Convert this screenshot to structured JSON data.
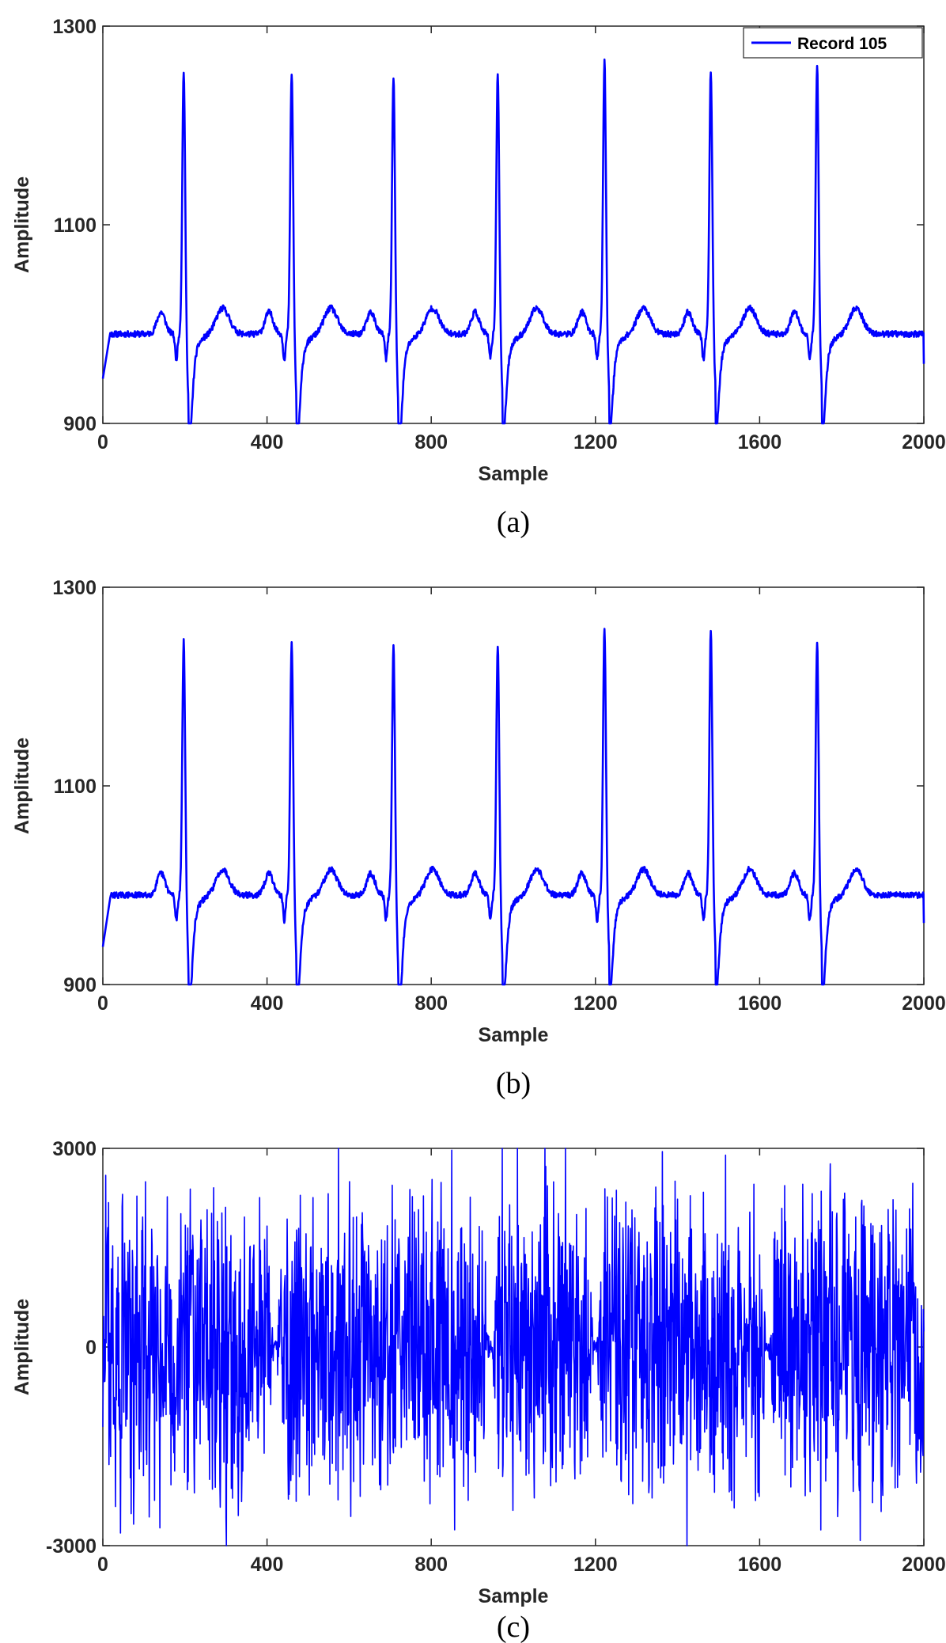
{
  "colors": {
    "line": "#0000ff",
    "axis": "#262626",
    "background": "#ffffff"
  },
  "chart_data": [
    {
      "type": "line",
      "caption": "(a)",
      "xlabel": "Sample",
      "ylabel": "Amplitude",
      "xlim": [
        0,
        2000
      ],
      "ylim": [
        900,
        1300
      ],
      "xticks": [
        0,
        400,
        800,
        1200,
        1600,
        2000
      ],
      "yticks": [
        900,
        1100,
        1300
      ],
      "grid": false,
      "legend": {
        "placement": "top-right",
        "entries": [
          "Record 105"
        ]
      },
      "series": [
        {
          "name": "Record 105",
          "signal": "ecg",
          "start_value": 945,
          "end_value": 960,
          "baseline": 990,
          "beats": [
            {
              "r_sample": 197,
              "r_peak": 1255,
              "s_min": 918
            },
            {
              "r_sample": 460,
              "r_peak": 1253,
              "s_min": 920
            },
            {
              "r_sample": 708,
              "r_peak": 1250,
              "s_min": 914
            },
            {
              "r_sample": 962,
              "r_peak": 1253,
              "s_min": 925
            },
            {
              "r_sample": 1222,
              "r_peak": 1265,
              "s_min": 930
            },
            {
              "r_sample": 1481,
              "r_peak": 1256,
              "s_min": 932
            },
            {
              "r_sample": 1740,
              "r_peak": 1260,
              "s_min": 930
            }
          ]
        }
      ]
    },
    {
      "type": "line",
      "caption": "(b)",
      "xlabel": "Sample",
      "ylabel": "Amplitude",
      "xlim": [
        0,
        2000
      ],
      "ylim": [
        900,
        1300
      ],
      "xticks": [
        0,
        400,
        800,
        1200,
        1600,
        2000
      ],
      "yticks": [
        900,
        1100,
        1300
      ],
      "grid": false,
      "series": [
        {
          "signal": "ecg",
          "start_value": 938,
          "end_value": 962,
          "baseline": 990,
          "beats": [
            {
              "r_sample": 197,
              "r_peak": 1245,
              "s_min": 915
            },
            {
              "r_sample": 460,
              "r_peak": 1245,
              "s_min": 918
            },
            {
              "r_sample": 708,
              "r_peak": 1240,
              "s_min": 912
            },
            {
              "r_sample": 962,
              "r_peak": 1243,
              "s_min": 922
            },
            {
              "r_sample": 1222,
              "r_peak": 1258,
              "s_min": 928
            },
            {
              "r_sample": 1481,
              "r_peak": 1255,
              "s_min": 930
            },
            {
              "r_sample": 1740,
              "r_peak": 1245,
              "s_min": 928
            }
          ]
        }
      ]
    },
    {
      "type": "line",
      "caption": "(c)",
      "xlabel": "Sample",
      "ylabel": "Amplitude",
      "xlim": [
        0,
        2000
      ],
      "ylim": [
        -3000,
        3000
      ],
      "xticks": [
        0,
        400,
        800,
        1200,
        1600,
        2000
      ],
      "yticks": [
        -3000,
        0,
        3000
      ],
      "grid": false,
      "series": [
        {
          "signal": "noise",
          "quiet_centers": [
            420,
            945,
            1200,
            1620
          ],
          "burst_amplitude": 2800
        }
      ]
    }
  ]
}
